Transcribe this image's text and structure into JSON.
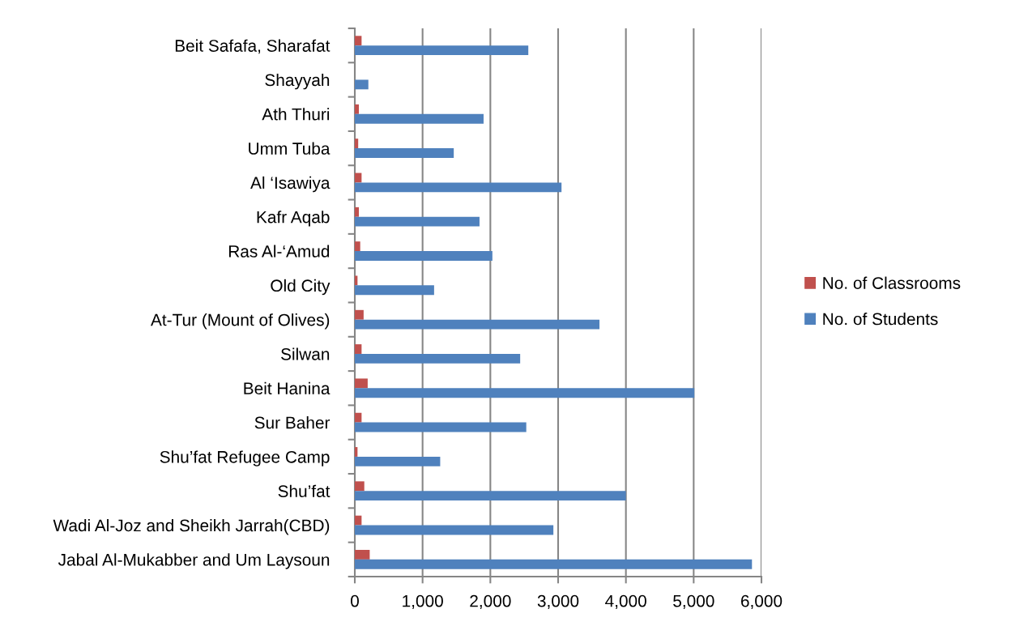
{
  "chart_data": {
    "type": "bar",
    "orientation": "horizontal",
    "categories": [
      "Beit Safafa, Sharafat",
      "Shayyah",
      "Ath Thuri",
      "Umm Tuba",
      "Al ‘Isawiya",
      "Kafr Aqab",
      "Ras Al-‘Amud",
      "Old City",
      "At-Tur (Mount of Olives)",
      "Silwan",
      "Beit Hanina",
      "Sur Baher",
      "Shu’fat Refugee Camp",
      "Shu’fat",
      "Wadi Al-Joz and Sheikh Jarrah(CBD)",
      "Jabal Al-Mukabber and Um Laysoun"
    ],
    "series": [
      {
        "name": "No. of Classrooms",
        "color": "#c0504d",
        "values": [
          100,
          null,
          60,
          50,
          100,
          60,
          80,
          40,
          130,
          100,
          190,
          100,
          40,
          140,
          100,
          220
        ]
      },
      {
        "name": "No. of Students",
        "color": "#4f81bd",
        "values": [
          2560,
          200,
          1900,
          1460,
          3050,
          1840,
          2030,
          1170,
          3610,
          2440,
          5010,
          2530,
          1260,
          4000,
          2930,
          5860
        ]
      }
    ],
    "xlim": [
      0,
      6000
    ],
    "xticks": [
      {
        "value": 0,
        "label": "0"
      },
      {
        "value": 1000,
        "label": "1,000"
      },
      {
        "value": 2000,
        "label": "2,000"
      },
      {
        "value": 3000,
        "label": "3,000"
      },
      {
        "value": 4000,
        "label": "4,000"
      },
      {
        "value": 5000,
        "label": "5,000"
      },
      {
        "value": 6000,
        "label": "6,000"
      }
    ],
    "grid": "x",
    "legend": "right"
  }
}
